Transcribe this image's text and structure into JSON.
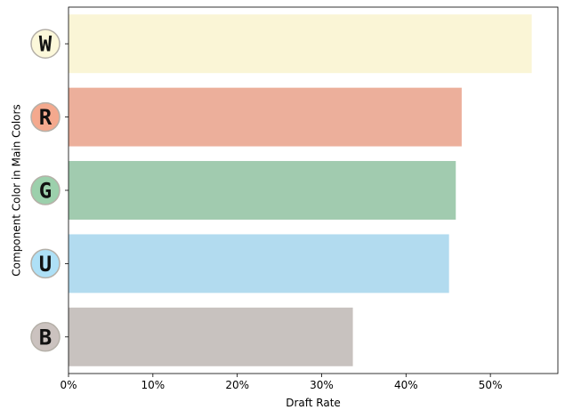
{
  "chart_data": {
    "type": "bar",
    "orientation": "horizontal",
    "title": "",
    "xlabel": "Draft Rate",
    "ylabel": "Component Color in Main Colors",
    "categories": [
      "W",
      "R",
      "G",
      "U",
      "B"
    ],
    "values": [
      0.549,
      0.466,
      0.459,
      0.451,
      0.337
    ],
    "colors": [
      "#faf5d6",
      "#ecaf9b",
      "#a1cbaf",
      "#b2dbef",
      "#c8c2bf"
    ],
    "badge_colors": [
      "#fcf8da",
      "#f4a98e",
      "#9cd0ac",
      "#aee0f6",
      "#cbc2bf"
    ],
    "xlim": [
      0,
      0.58
    ],
    "xticks": [
      0,
      0.1,
      0.2,
      0.3,
      0.4,
      0.5
    ],
    "xtick_labels": [
      "0%",
      "10%",
      "20%",
      "30%",
      "40%",
      "50%"
    ],
    "grid": false,
    "legend": "none"
  }
}
